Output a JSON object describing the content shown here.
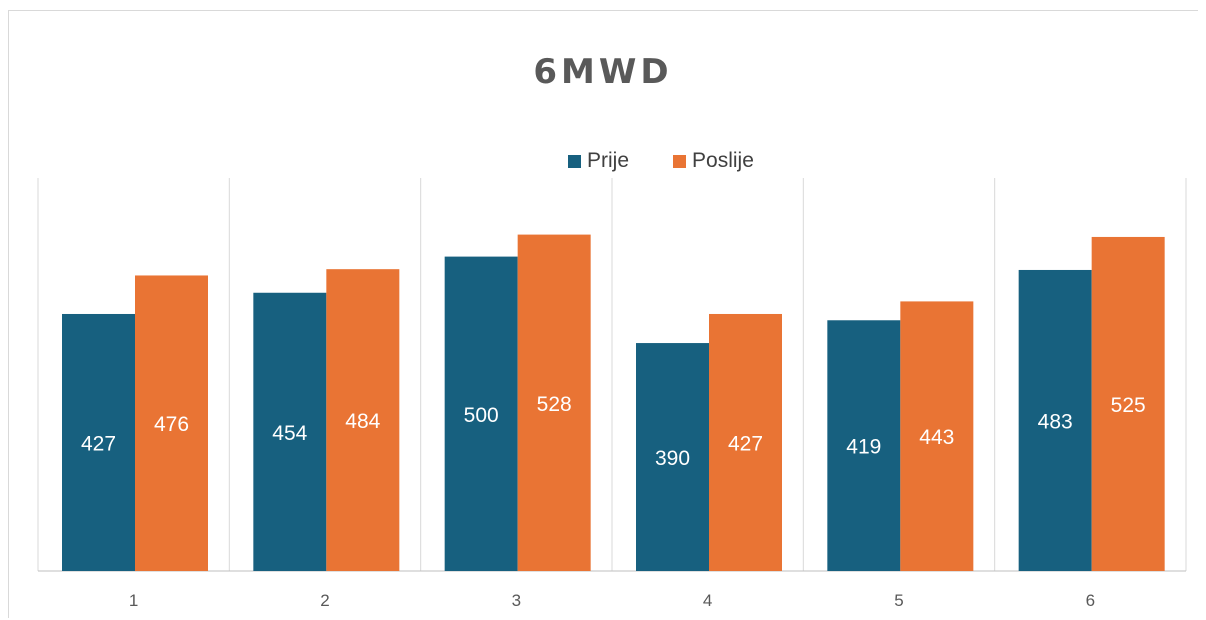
{
  "chart_data": {
    "type": "bar",
    "title": "6MWD",
    "xlabel": "",
    "ylabel": "",
    "categories": [
      "1",
      "2",
      "3",
      "4",
      "5",
      "6"
    ],
    "series": [
      {
        "name": "Prije",
        "color": "#17607f",
        "values": [
          427,
          454,
          500,
          390,
          419,
          483
        ]
      },
      {
        "name": "Poslije",
        "color": "#e97434",
        "values": [
          476,
          484,
          528,
          427,
          443,
          525
        ]
      }
    ],
    "ylim": [
      100,
      600
    ],
    "legend_position": "top",
    "grid": "vertical"
  }
}
